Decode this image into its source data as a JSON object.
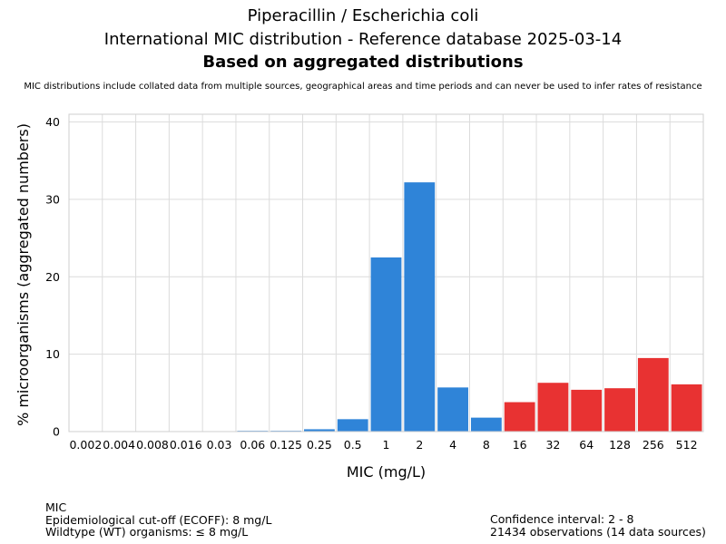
{
  "header": {
    "title_line1": "Piperacillin / Escherichia coli",
    "title_line2": "International MIC distribution - Reference database 2025-03-14",
    "title_line3": "Based on aggregated distributions",
    "note": "MIC distributions include collated data from multiple sources, geographical areas and time periods and can never be used to infer rates of resistance"
  },
  "chart_data": {
    "type": "bar",
    "xlabel": "MIC (mg/L)",
    "ylabel": "% microorganisms (aggregated numbers)",
    "ylim": [
      0,
      41
    ],
    "yticks": [
      0,
      10,
      20,
      30,
      40
    ],
    "grid": true,
    "categories": [
      "0.002",
      "0.004",
      "0.008",
      "0.016",
      "0.03",
      "0.06",
      "0.125",
      "0.25",
      "0.5",
      "1",
      "2",
      "4",
      "8",
      "16",
      "32",
      "64",
      "128",
      "256",
      "512"
    ],
    "values": [
      0,
      0,
      0,
      0,
      0,
      0.1,
      0.1,
      0.3,
      1.6,
      22.5,
      32.2,
      5.7,
      1.8,
      3.8,
      6.3,
      5.4,
      5.6,
      9.5,
      6.1
    ],
    "colors": {
      "wildtype": "#2f84d8",
      "non_wildtype": "#e83232"
    },
    "wildtype_max_category": "8"
  },
  "footer": {
    "left": [
      "MIC",
      "Epidemiological cut-off (ECOFF): 8 mg/L",
      "Wildtype (WT) organisms: ≤ 8 mg/L"
    ],
    "right": [
      "Confidence interval: 2 - 8",
      "21434 observations (14 data sources)"
    ]
  }
}
